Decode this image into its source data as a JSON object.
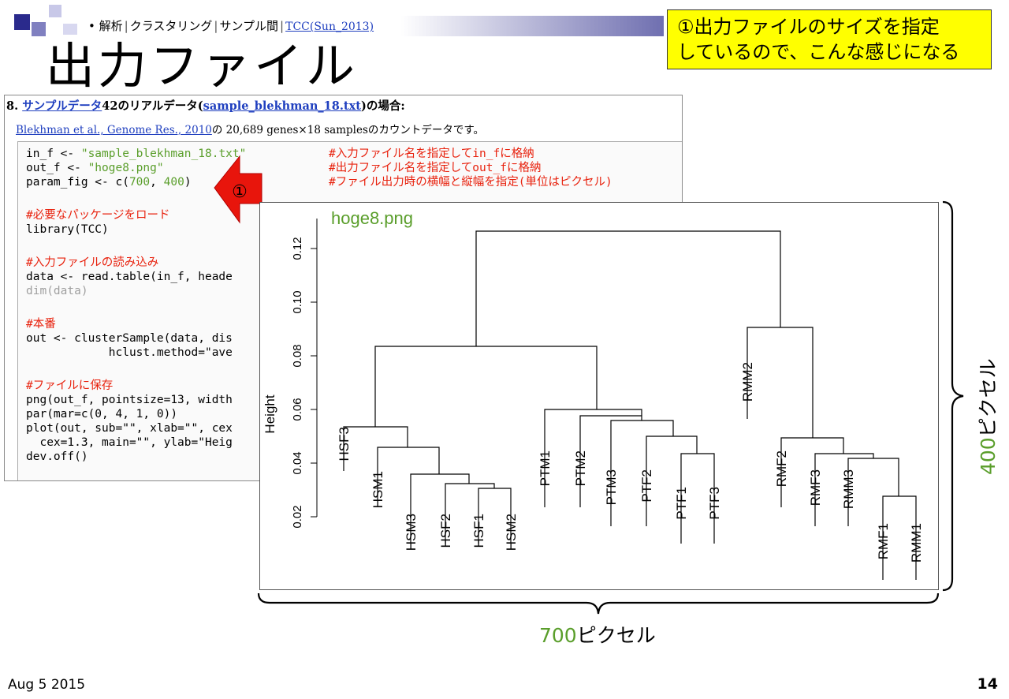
{
  "breadcrumb": {
    "bullet": "•",
    "items": [
      "解析",
      "クラスタリング",
      "サンプル間"
    ],
    "link": "TCC(Sun_2013)"
  },
  "page_title": "出力ファイル",
  "callout": {
    "line1": "①出力ファイルのサイズを指定",
    "line2": "しているので、こんな感じになる"
  },
  "doc": {
    "heading_prefix": "8. ",
    "heading_link1": "サンプルデータ",
    "heading_mid": "42のリアルデータ(",
    "heading_link2": "sample_blekhman_18.txt",
    "heading_suffix": ")の場合:",
    "desc_link": "Blekhman et al., Genome Res., 2010",
    "desc_text": "の 20,689 genes×18 samplesのカウントデータです。"
  },
  "code": {
    "l1a": "in_f <- ",
    "l1s": "\"sample_blekhman_18.txt\"",
    "l1c": "#入力ファイル名を指定してin_fに格納",
    "l2a": "out_f <- ",
    "l2s": "\"hoge8.png\"",
    "l2c": "#出力ファイル名を指定してout_fに格納",
    "l3a": "param_fig <- c(",
    "l3n1": "700",
    "l3b": ", ",
    "l3n2": "400",
    "l3e": ")",
    "l3c": "#ファイル出力時の横幅と縦幅を指定(単位はピクセル)",
    "l4": "#必要なパッケージをロード",
    "l5": "library(TCC)",
    "l6": "#入力ファイルの読み込み",
    "l7": "data <- read.table(in_f, heade",
    "l8": "dim(data)",
    "l9": "#本番",
    "l10": "out <- clusterSample(data, dis",
    "l11": "            hclust.method=\"ave",
    "l12": "#ファイルに保存",
    "l13": "png(out_f, pointsize=13, width",
    "l14": "par(mar=c(0, 4, 1, 0))",
    "l15": "plot(out, sub=\"\", xlab=\"\", cex",
    "l16": "  cex=1.3, main=\"\", ylab=\"Heig",
    "l17": "dev.off()"
  },
  "arrow_label": "①",
  "dendrogram": {
    "file_label": "hoge8.png",
    "ylabel": "Height",
    "yticks": [
      "0.02",
      "0.04",
      "0.06",
      "0.08",
      "0.10",
      "0.12"
    ],
    "leaves": [
      "HSF3",
      "HSM1",
      "HSM3",
      "HSF2",
      "HSF1",
      "HSM2",
      "PTM1",
      "PTM2",
      "PTM3",
      "PTF2",
      "PTF1",
      "PTF3",
      "RMM2",
      "RMF2",
      "RMF3",
      "RMM3",
      "RMF1",
      "RMM1"
    ]
  },
  "width_label": {
    "num": "700",
    "unit": "ピクセル"
  },
  "height_label": {
    "num": "400",
    "unit": "ピクセル"
  },
  "footer": {
    "date": "Aug 5 2015",
    "slide_number": "14"
  },
  "colors": {
    "green": "#5a9e2b",
    "red_code": "#e8220e",
    "callout_bg": "#ffff00",
    "link": "#1f3fbf",
    "arrow_red": "#e8150c"
  }
}
